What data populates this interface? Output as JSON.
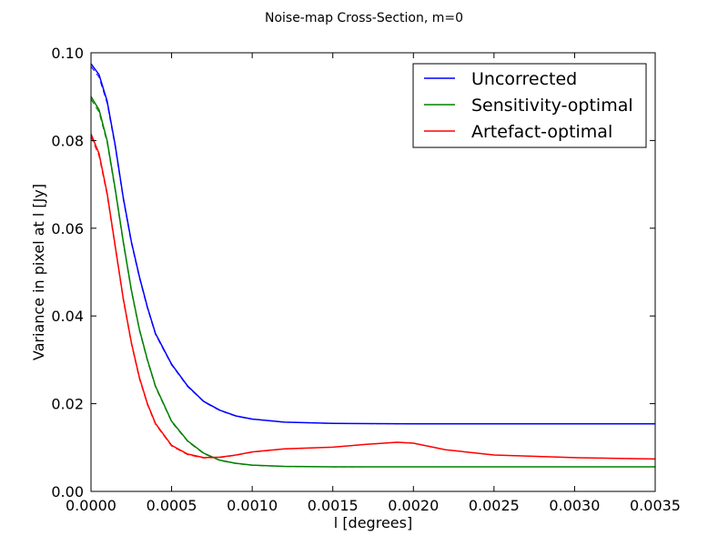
{
  "chart_data": {
    "type": "line",
    "title": "Noise-map  Cross-Section, m=0",
    "xlabel": "l [degrees]",
    "ylabel": "Variance in pixel at l [Jy]",
    "xlim": [
      0,
      0.0035
    ],
    "ylim": [
      0,
      0.1
    ],
    "xticks": [
      "0.0000",
      "0.0005",
      "0.0010",
      "0.0015",
      "0.0020",
      "0.0025",
      "0.0030",
      "0.0035"
    ],
    "yticks": [
      "0.00",
      "0.02",
      "0.04",
      "0.06",
      "0.08",
      "0.10"
    ],
    "legend_position": "top-right",
    "grid": false,
    "series": [
      {
        "name": "Uncorrected",
        "color": "#0000ff",
        "x": [
          0,
          5e-05,
          0.0001,
          0.00015,
          0.0002,
          0.00025,
          0.0003,
          0.00035,
          0.0004,
          0.0005,
          0.0006,
          0.0007,
          0.0008,
          0.0009,
          0.001,
          0.0012,
          0.0015,
          0.002,
          0.0025,
          0.003,
          0.0035
        ],
        "y": [
          0.0975,
          0.095,
          0.089,
          0.079,
          0.067,
          0.057,
          0.049,
          0.042,
          0.036,
          0.029,
          0.024,
          0.0205,
          0.0185,
          0.0172,
          0.0165,
          0.0158,
          0.0155,
          0.0154,
          0.0154,
          0.0154,
          0.0154
        ]
      },
      {
        "name": "Sensitivity-optimal",
        "color": "#008000",
        "x": [
          0,
          5e-05,
          0.0001,
          0.00015,
          0.0002,
          0.00025,
          0.0003,
          0.00035,
          0.0004,
          0.0005,
          0.0006,
          0.0007,
          0.0008,
          0.0009,
          0.001,
          0.0012,
          0.0015,
          0.002,
          0.0025,
          0.003,
          0.0035
        ],
        "y": [
          0.09,
          0.087,
          0.08,
          0.069,
          0.057,
          0.046,
          0.037,
          0.03,
          0.024,
          0.016,
          0.0115,
          0.0087,
          0.0071,
          0.0064,
          0.006,
          0.0057,
          0.0056,
          0.0056,
          0.0056,
          0.0056,
          0.0056
        ]
      },
      {
        "name": "Artefact-optimal",
        "color": "#ff0000",
        "x": [
          0,
          5e-05,
          0.0001,
          0.00015,
          0.0002,
          0.00025,
          0.0003,
          0.00035,
          0.0004,
          0.0005,
          0.0006,
          0.0007,
          0.0008,
          0.0009,
          0.001,
          0.0012,
          0.0015,
          0.0017,
          0.0019,
          0.002,
          0.0022,
          0.0025,
          0.003,
          0.0035
        ],
        "y": [
          0.0815,
          0.077,
          0.068,
          0.056,
          0.044,
          0.034,
          0.026,
          0.02,
          0.0155,
          0.0105,
          0.0085,
          0.0077,
          0.0078,
          0.0083,
          0.009,
          0.0097,
          0.0101,
          0.0107,
          0.0112,
          0.011,
          0.0095,
          0.0083,
          0.0077,
          0.0074
        ]
      }
    ]
  }
}
